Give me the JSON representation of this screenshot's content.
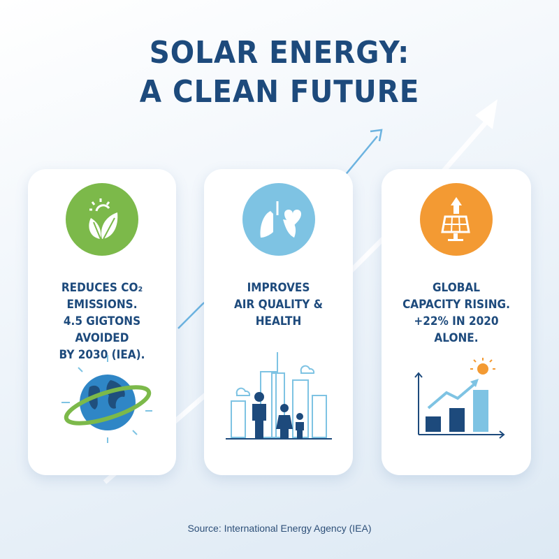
{
  "title": {
    "line1": "SOLAR ENERGY:",
    "line2": "A CLEAN FUTURE"
  },
  "colors": {
    "title": "#1d4a7c",
    "green": "#7cb94a",
    "blue": "#7ec3e3",
    "orange": "#f39a33"
  },
  "cards": [
    {
      "icon": "leaf-sun-icon",
      "lines": [
        "REDUCES CO₂",
        "EMISSIONS.",
        "4.5 GIGTONS AVOIDED",
        "BY 2030 (IEA)."
      ],
      "illustration": "globe-icon"
    },
    {
      "icon": "lungs-heart-icon",
      "lines": [
        "IMPROVES",
        "AIR QUALITY &",
        "HEALTH"
      ],
      "illustration": "city-family-icon"
    },
    {
      "icon": "solar-panel-icon",
      "lines": [
        "GLOBAL",
        "CAPACITY RISING.",
        "+22% IN 2020",
        "ALONE."
      ],
      "illustration": "growth-chart-icon"
    }
  ],
  "source": "Source: International Energy Agency (IEA)"
}
